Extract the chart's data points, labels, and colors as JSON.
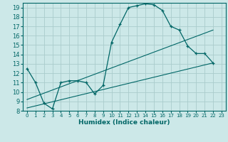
{
  "bg_color": "#cce8e8",
  "grid_color": "#aacccc",
  "line_color": "#006666",
  "xlabel": "Humidex (Indice chaleur)",
  "xlim": [
    -0.5,
    23.5
  ],
  "ylim": [
    8,
    19.5
  ],
  "xticks": [
    0,
    1,
    2,
    3,
    4,
    5,
    6,
    7,
    8,
    9,
    10,
    11,
    12,
    13,
    14,
    15,
    16,
    17,
    18,
    19,
    20,
    21,
    22,
    23
  ],
  "yticks": [
    8,
    9,
    10,
    11,
    12,
    13,
    14,
    15,
    16,
    17,
    18,
    19
  ],
  "curve1_x": [
    0,
    1,
    2,
    3,
    4,
    5,
    6,
    7,
    8,
    9,
    10,
    11,
    12,
    13,
    14,
    15,
    16,
    17,
    18,
    19,
    20,
    21,
    22
  ],
  "curve1_y": [
    12.5,
    11.0,
    8.8,
    8.2,
    11.0,
    11.2,
    11.2,
    11.0,
    9.8,
    10.7,
    15.3,
    17.2,
    19.0,
    19.2,
    19.4,
    19.3,
    18.7,
    17.0,
    16.6,
    14.9,
    14.1,
    14.1,
    13.1
  ],
  "line1_x": [
    0,
    22
  ],
  "line1_y": [
    8.3,
    13.1
  ],
  "line2_x": [
    0,
    22
  ],
  "line2_y": [
    9.2,
    16.6
  ]
}
